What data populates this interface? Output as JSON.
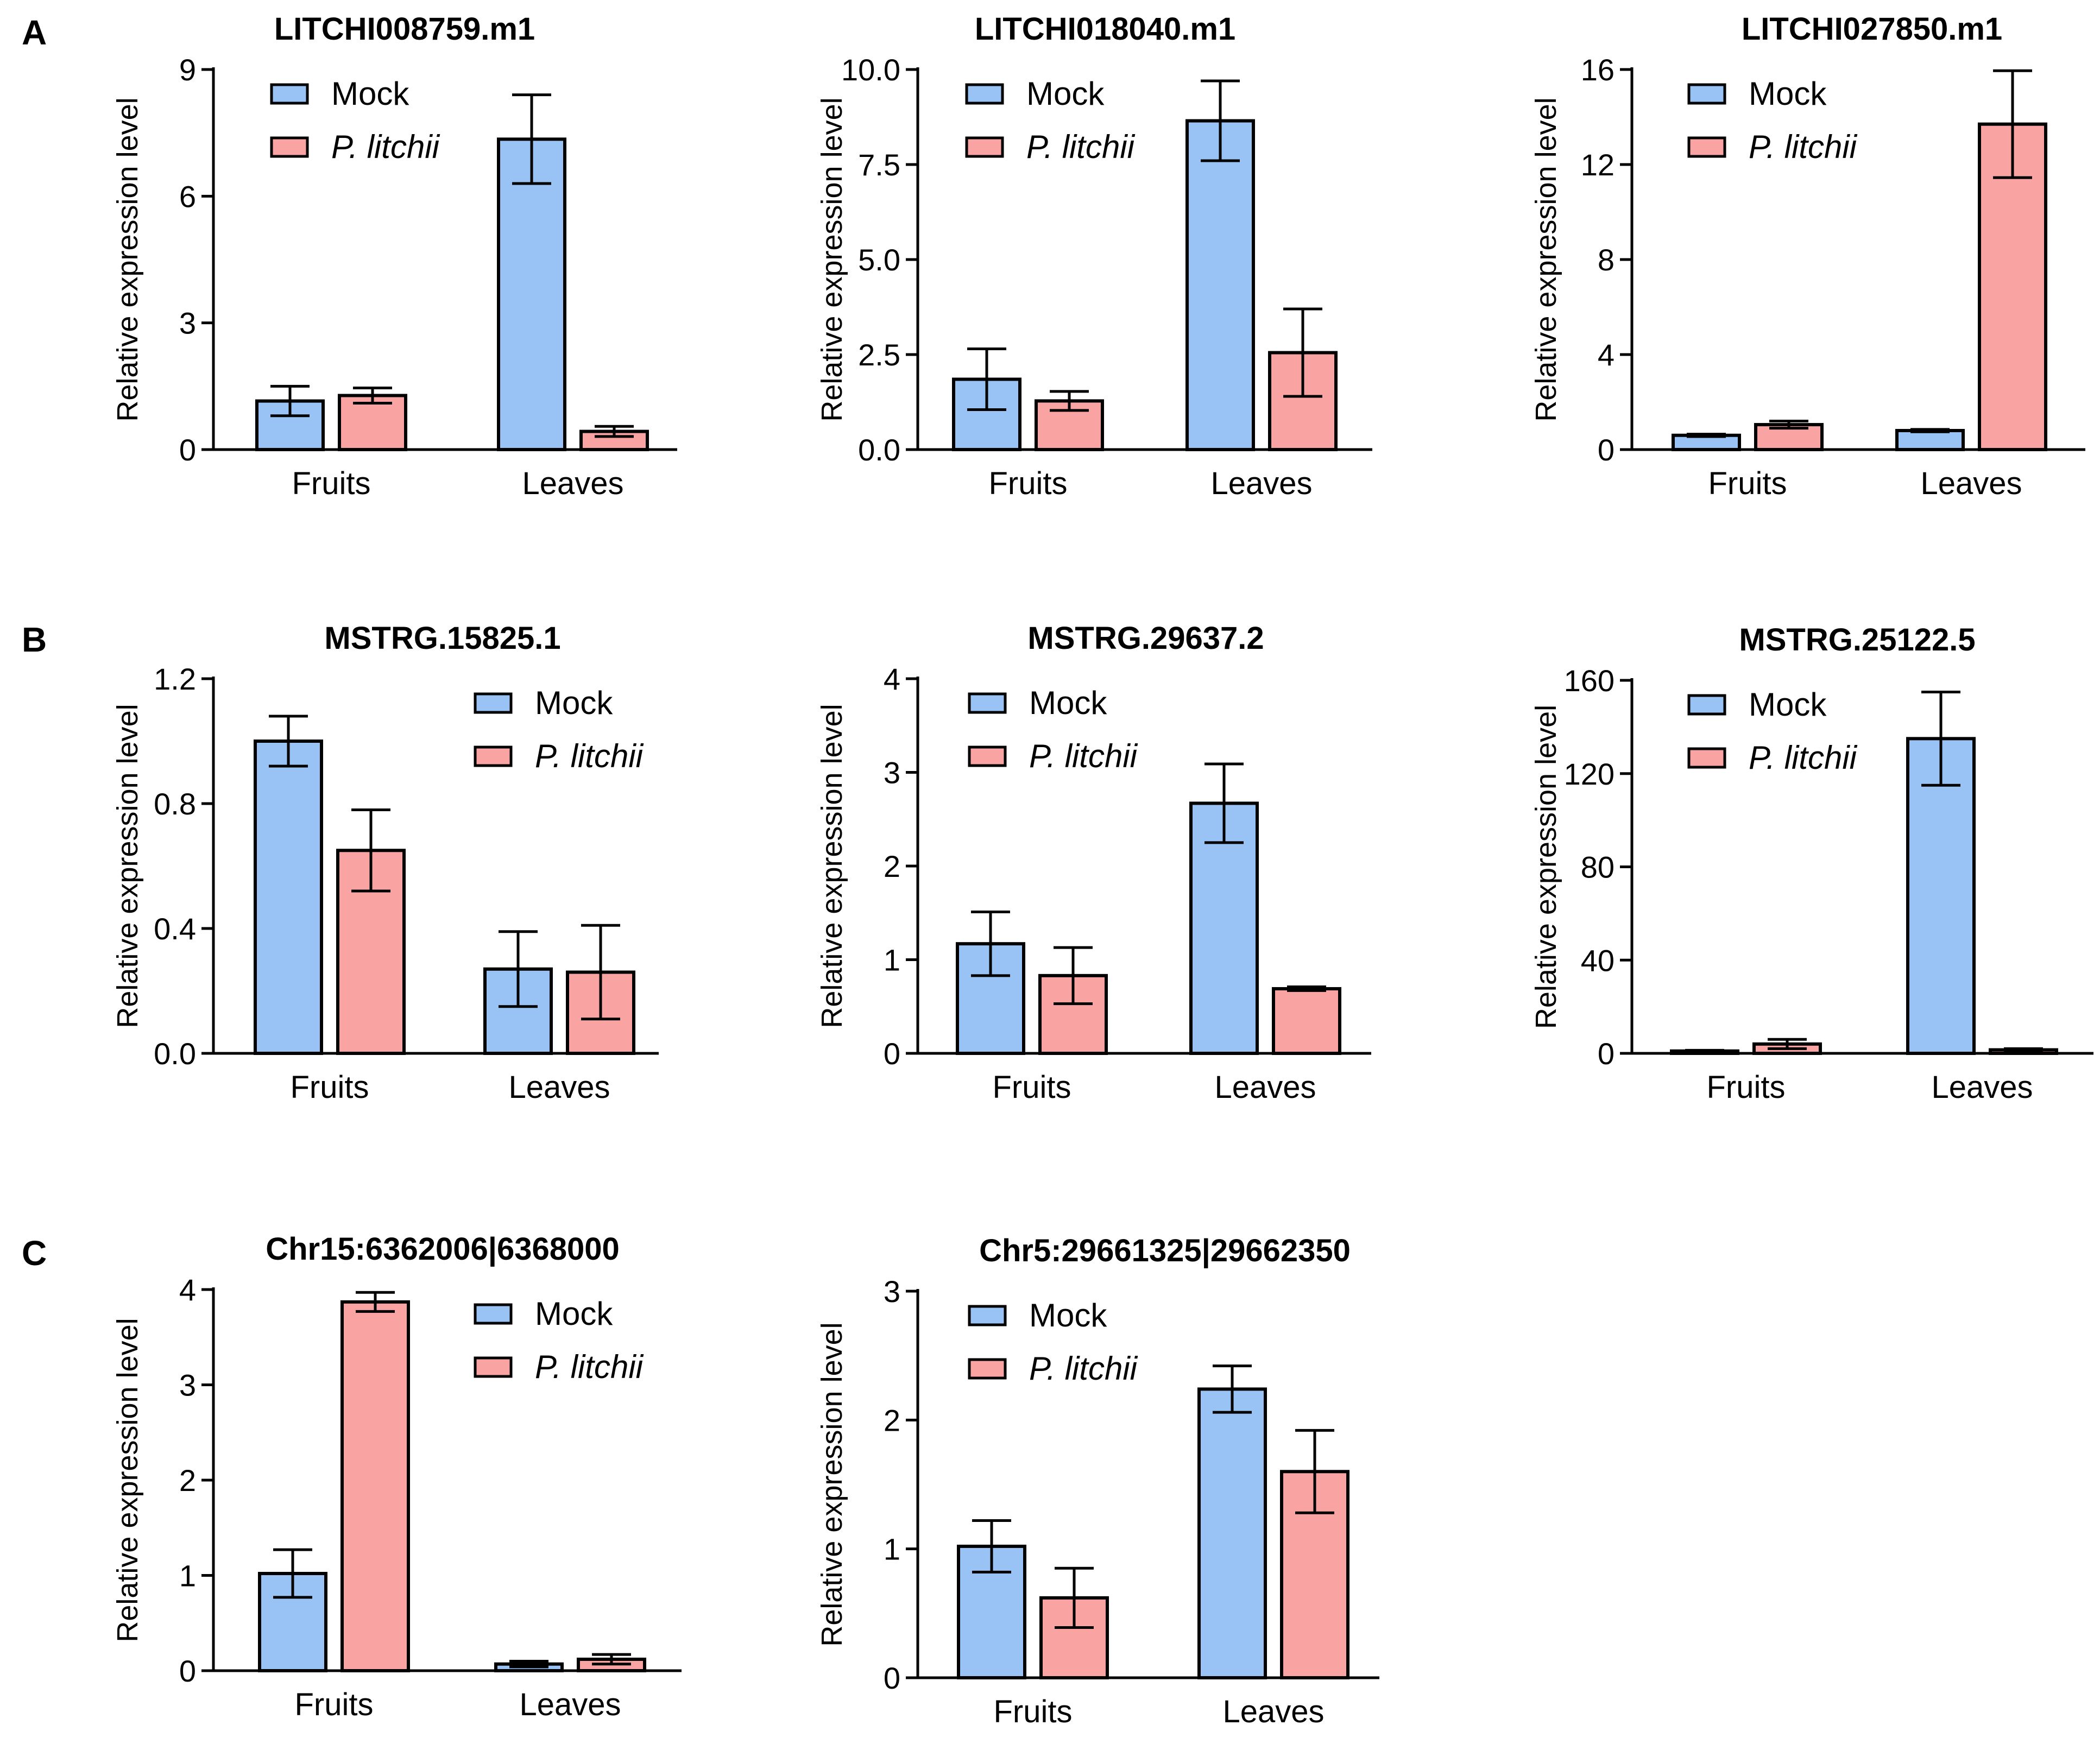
{
  "panel_labels": [
    "A",
    "B",
    "C"
  ],
  "colors": {
    "mock": "#99c2f5",
    "p_litchii": "#f9a3a3",
    "stroke": "#000000"
  },
  "chart_data": [
    {
      "panel": "A",
      "type": "bar",
      "title": "LITCHI008759.m1",
      "xlabel": "",
      "ylabel": "Relative expression level",
      "categories": [
        "Fruits",
        "Leaves"
      ],
      "ylim": [
        0,
        9
      ],
      "yticks": [
        "0",
        "3",
        "6",
        "9"
      ],
      "legend": [
        "Mock",
        "P. litchii"
      ],
      "legend_position": "top-left",
      "series": [
        {
          "name": "Mock",
          "values": [
            1.15,
            7.35
          ],
          "errors": [
            0.35,
            1.05
          ]
        },
        {
          "name": "P. litchii",
          "values": [
            1.28,
            0.43
          ],
          "errors": [
            0.18,
            0.12
          ]
        }
      ]
    },
    {
      "panel": "A",
      "type": "bar",
      "title": "LITCHI018040.m1",
      "xlabel": "",
      "ylabel": "Relative expression level",
      "categories": [
        "Fruits",
        "Leaves"
      ],
      "ylim": [
        0,
        10
      ],
      "yticks": [
        "0.0",
        "2.5",
        "5.0",
        "7.5",
        "10.0"
      ],
      "legend": [
        "Mock",
        "P. litchii"
      ],
      "legend_position": "top-left",
      "series": [
        {
          "name": "Mock",
          "values": [
            1.85,
            8.65
          ],
          "errors": [
            0.8,
            1.05
          ]
        },
        {
          "name": "P. litchii",
          "values": [
            1.28,
            2.55
          ],
          "errors": [
            0.25,
            1.15
          ]
        }
      ]
    },
    {
      "panel": "A",
      "type": "bar",
      "title": "LITCHI027850.m1",
      "xlabel": "",
      "ylabel": "Relative expression level",
      "categories": [
        "Fruits",
        "Leaves"
      ],
      "ylim": [
        0,
        16
      ],
      "yticks": [
        "0",
        "4",
        "8",
        "12",
        "16"
      ],
      "legend": [
        "Mock",
        "P. litchii"
      ],
      "legend_position": "top-left",
      "series": [
        {
          "name": "Mock",
          "values": [
            0.6,
            0.8
          ],
          "errors": [
            0.05,
            0.05
          ]
        },
        {
          "name": "P. litchii",
          "values": [
            1.05,
            13.7
          ],
          "errors": [
            0.15,
            2.25
          ]
        }
      ]
    },
    {
      "panel": "B",
      "type": "bar",
      "title": "MSTRG.15825.1",
      "xlabel": "",
      "ylabel": "Relative expression level",
      "categories": [
        "Fruits",
        "Leaves"
      ],
      "ylim": [
        0,
        1.2
      ],
      "yticks": [
        "0.0",
        "0.4",
        "0.8",
        "1.2"
      ],
      "legend": [
        "Mock",
        "P. litchii"
      ],
      "legend_position": "top-right",
      "series": [
        {
          "name": "Mock",
          "values": [
            1.0,
            0.27
          ],
          "errors": [
            0.08,
            0.12
          ]
        },
        {
          "name": "P. litchii",
          "values": [
            0.65,
            0.26
          ],
          "errors": [
            0.13,
            0.15
          ]
        }
      ]
    },
    {
      "panel": "B",
      "type": "bar",
      "title": "MSTRG.29637.2",
      "xlabel": "",
      "ylabel": "Relative expression level",
      "categories": [
        "Fruits",
        "Leaves"
      ],
      "ylim": [
        0,
        4
      ],
      "yticks": [
        "0",
        "1",
        "2",
        "3",
        "4"
      ],
      "legend": [
        "Mock",
        "P. litchii"
      ],
      "legend_position": "top-left",
      "series": [
        {
          "name": "Mock",
          "values": [
            1.17,
            2.67
          ],
          "errors": [
            0.34,
            0.42
          ]
        },
        {
          "name": "P. litchii",
          "values": [
            0.83,
            0.69
          ],
          "errors": [
            0.3,
            0.02
          ]
        }
      ]
    },
    {
      "panel": "B",
      "type": "bar",
      "title": "MSTRG.25122.5",
      "xlabel": "",
      "ylabel": "Relative expression level",
      "categories": [
        "Fruits",
        "Leaves"
      ],
      "ylim": [
        0,
        160
      ],
      "yticks": [
        "0",
        "40",
        "80",
        "120",
        "160"
      ],
      "legend": [
        "Mock",
        "P. litchii"
      ],
      "legend_position": "top-left",
      "series": [
        {
          "name": "Mock",
          "values": [
            1.0,
            135
          ],
          "errors": [
            0.3,
            20
          ]
        },
        {
          "name": "P. litchii",
          "values": [
            4.0,
            1.5
          ],
          "errors": [
            2.0,
            0.5
          ]
        }
      ]
    },
    {
      "panel": "C",
      "type": "bar",
      "title": "Chr15:6362006|6368000",
      "xlabel": "",
      "ylabel": "Relative expression level",
      "categories": [
        "Fruits",
        "Leaves"
      ],
      "ylim": [
        0,
        4
      ],
      "yticks": [
        "0",
        "1",
        "2",
        "3",
        "4"
      ],
      "legend": [
        "Mock",
        "P. litchii"
      ],
      "legend_position": "top-right",
      "series": [
        {
          "name": "Mock",
          "values": [
            1.02,
            0.07
          ],
          "errors": [
            0.25,
            0.03
          ]
        },
        {
          "name": "P. litchii",
          "values": [
            3.87,
            0.12
          ],
          "errors": [
            0.1,
            0.05
          ]
        }
      ]
    },
    {
      "panel": "C",
      "type": "bar",
      "title": "Chr5:29661325|29662350",
      "xlabel": "",
      "ylabel": "Relative expression level",
      "categories": [
        "Fruits",
        "Leaves"
      ],
      "ylim": [
        0,
        3
      ],
      "yticks": [
        "0",
        "1",
        "2",
        "3"
      ],
      "legend": [
        "Mock",
        "P. litchii"
      ],
      "legend_position": "top-left",
      "series": [
        {
          "name": "Mock",
          "values": [
            1.02,
            2.24
          ],
          "errors": [
            0.2,
            0.18
          ]
        },
        {
          "name": "P. litchii",
          "values": [
            0.62,
            1.6
          ],
          "errors": [
            0.23,
            0.32
          ]
        }
      ]
    }
  ]
}
